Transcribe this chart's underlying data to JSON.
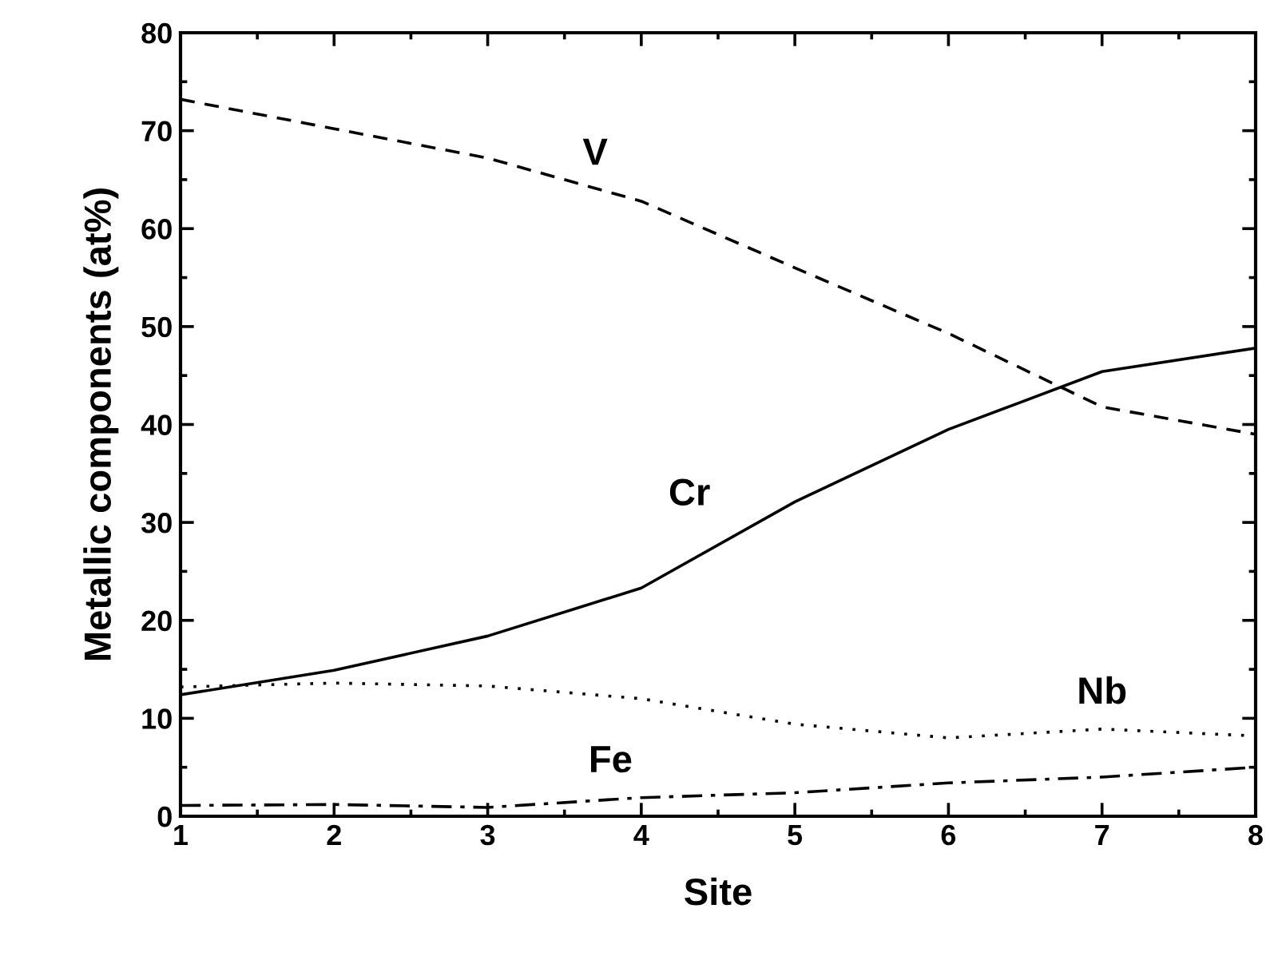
{
  "chart_data": {
    "type": "line",
    "xlabel": "Site",
    "ylabel": "Metallic components (at%)",
    "x": [
      1,
      2,
      3,
      4,
      5,
      6,
      7,
      8
    ],
    "series": [
      {
        "name": "V",
        "color": "#000000",
        "line_style": "dashed",
        "values": [
          73.2,
          70.2,
          67.2,
          62.8,
          56.0,
          49.3,
          41.8,
          39.0
        ]
      },
      {
        "name": "Cr",
        "color": "#000000",
        "line_style": "solid",
        "values": [
          12.4,
          14.9,
          18.4,
          23.3,
          32.1,
          39.5,
          45.4,
          47.8
        ]
      },
      {
        "name": "Nb",
        "color": "#000000",
        "line_style": "dotted",
        "values": [
          13.2,
          13.6,
          13.3,
          12.0,
          9.4,
          8.0,
          8.9,
          8.2
        ]
      },
      {
        "name": "Fe",
        "color": "#000000",
        "line_style": "dashdot",
        "values": [
          1.1,
          1.2,
          0.9,
          1.9,
          2.4,
          3.4,
          4.0,
          5.0
        ]
      }
    ],
    "xlim": [
      1,
      8
    ],
    "xticks": [
      1,
      2,
      3,
      4,
      5,
      6,
      7,
      8
    ],
    "ylim": [
      0,
      80
    ],
    "yticks": [
      0,
      10,
      20,
      30,
      40,
      50,
      60,
      70,
      80
    ],
    "grid": false,
    "legend": false,
    "marker": "none"
  }
}
